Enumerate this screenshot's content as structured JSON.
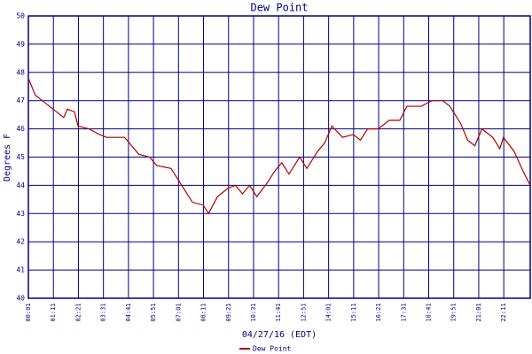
{
  "chart_data": {
    "type": "line",
    "title": "Dew Point",
    "ylabel": "Degrees F",
    "xlabel": "04/27/16 (EDT)",
    "x": [
      "00:01",
      "00:20",
      "00:40",
      "01:00",
      "01:20",
      "01:40",
      "01:50",
      "02:10",
      "02:20",
      "02:50",
      "03:20",
      "03:40",
      "04:30",
      "04:50",
      "05:10",
      "05:40",
      "06:00",
      "06:40",
      "07:10",
      "07:40",
      "08:10",
      "08:25",
      "08:50",
      "09:20",
      "09:40",
      "10:00",
      "10:20",
      "10:40",
      "11:10",
      "11:30",
      "11:50",
      "12:10",
      "12:40",
      "13:00",
      "13:30",
      "13:50",
      "14:10",
      "14:40",
      "15:10",
      "15:30",
      "15:50",
      "16:20",
      "16:50",
      "17:20",
      "17:40",
      "18:20",
      "18:50",
      "19:20",
      "19:40",
      "20:10",
      "20:30",
      "20:50",
      "21:10",
      "21:40",
      "22:00",
      "22:10",
      "22:40",
      "23:05",
      "23:25"
    ],
    "series": [
      {
        "name": "Dew Point",
        "color": "#b00000",
        "values": [
          47.8,
          47.2,
          47.0,
          46.8,
          46.6,
          46.4,
          46.7,
          46.6,
          46.1,
          46.0,
          45.8,
          45.7,
          45.7,
          45.4,
          45.1,
          45.0,
          44.7,
          44.6,
          44.0,
          43.4,
          43.3,
          43.0,
          43.6,
          43.9,
          44.0,
          43.7,
          44.0,
          43.6,
          44.1,
          44.5,
          44.8,
          44.4,
          45.0,
          44.6,
          45.2,
          45.5,
          46.1,
          45.7,
          45.8,
          45.6,
          46.0,
          46.0,
          46.3,
          46.3,
          46.8,
          46.8,
          47.0,
          47.0,
          46.8,
          46.2,
          45.6,
          45.4,
          46.0,
          45.7,
          45.3,
          45.7,
          45.2,
          44.5,
          44.0
        ]
      }
    ],
    "xlim": [
      "00:01",
      "23:25"
    ],
    "xticks": [
      "00:01",
      "01:11",
      "02:21",
      "03:31",
      "04:41",
      "05:51",
      "07:01",
      "08:11",
      "09:21",
      "10:31",
      "11:41",
      "12:51",
      "14:01",
      "15:11",
      "16:21",
      "17:31",
      "18:41",
      "19:51",
      "21:01",
      "22:11"
    ],
    "ylim": [
      40,
      50
    ],
    "yticks": [
      40,
      41,
      42,
      43,
      44,
      45,
      46,
      47,
      48,
      49,
      50
    ],
    "grid": true,
    "grid_color": "#000080"
  }
}
